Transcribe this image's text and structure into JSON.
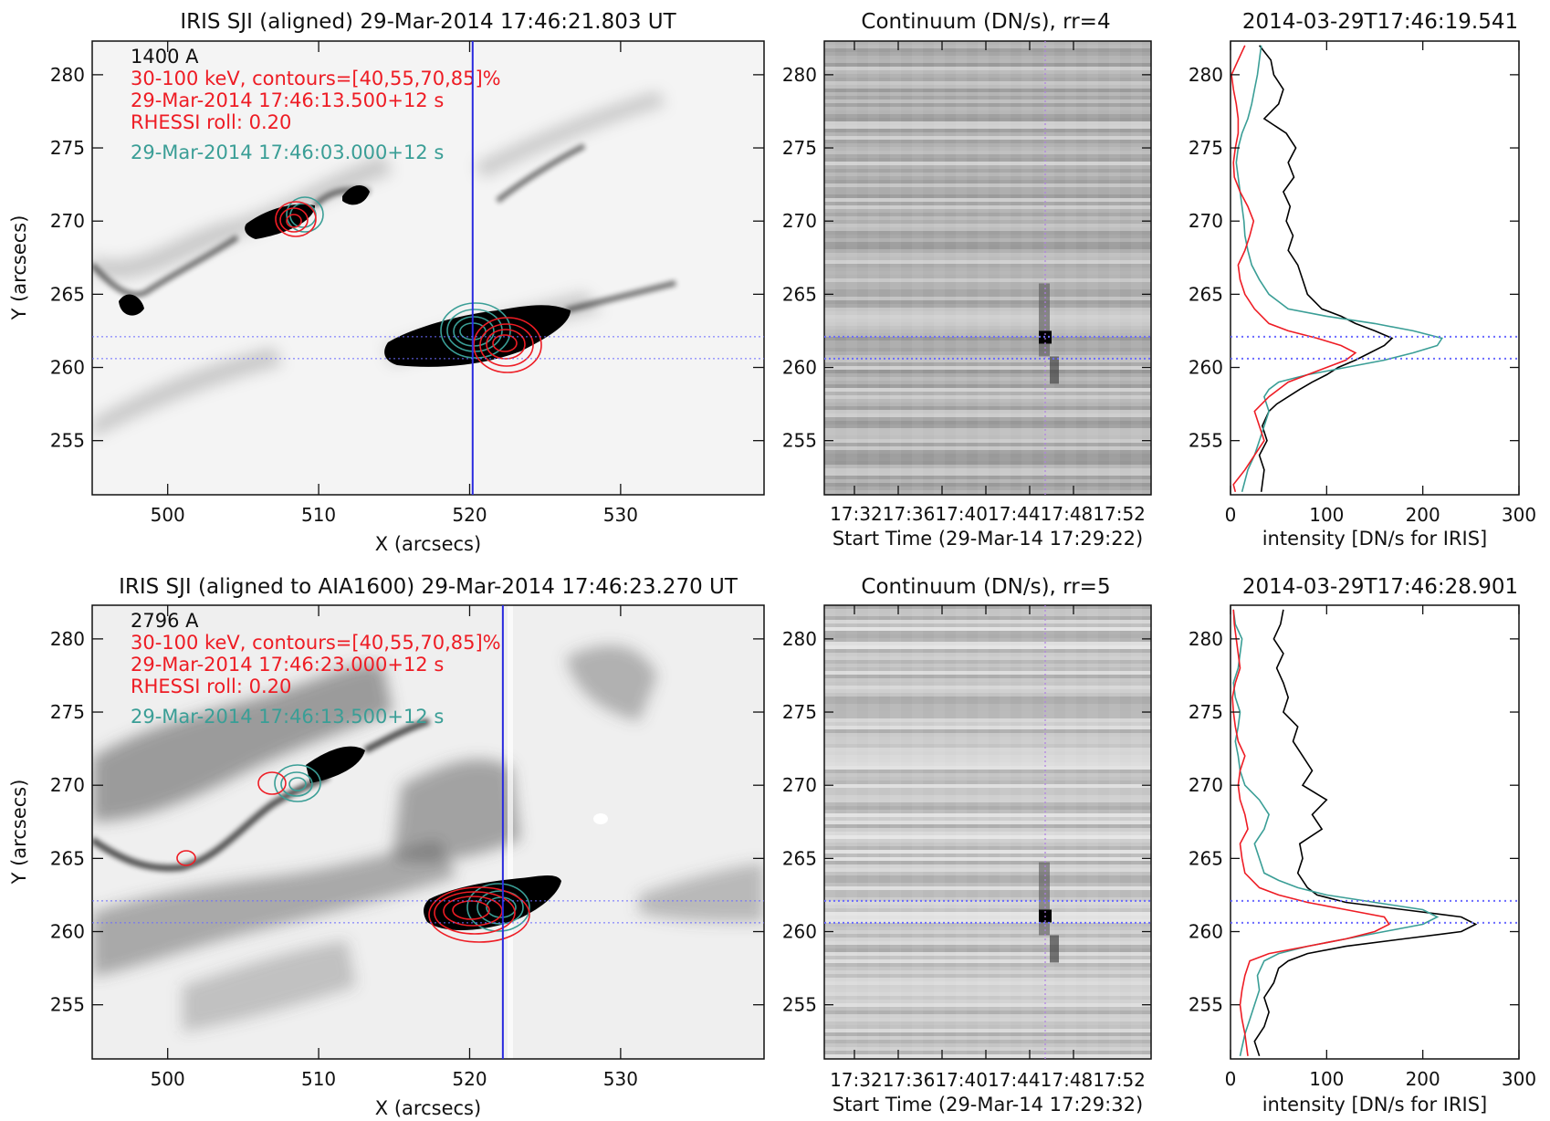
{
  "colors": {
    "rhessi": "#ee1c24",
    "teal": "#3a9e96",
    "slit": "#2a2adf",
    "dotted_blue": "#6b6bff",
    "dotted_violet": "#b07be6",
    "profile_black": "#000000"
  },
  "panels": [
    {
      "image": {
        "title": "IRIS SJI (aligned) 29-Mar-2014 17:46:21.803 UT",
        "xlabel": "X (arcsecs)",
        "ylabel": "Y (arcsecs)",
        "xlim": [
          495,
          539.5
        ],
        "ylim": [
          251.3,
          282.3
        ],
        "xticks": [
          "500",
          "510",
          "520",
          "530"
        ],
        "yticks": [
          "255",
          "260",
          "265",
          "270",
          "275",
          "280"
        ],
        "annotations": [
          {
            "text": "1400 A",
            "color": "#111111"
          },
          {
            "text": "30-100 keV, contours=[40,55,70,85]%",
            "color": "#ee1c24"
          },
          {
            "text": "29-Mar-2014 17:46:13.500+12 s",
            "color": "#ee1c24"
          },
          {
            "text": "RHESSI roll:  0.20",
            "color": "#ee1c24"
          },
          {
            "text": "29-Mar-2014 17:46:03.000+12 s",
            "color": "#3a9e96"
          }
        ],
        "slit_x": 520.2,
        "hlines": [
          262.1,
          260.6
        ]
      },
      "spectrum": {
        "title": "Continuum (DN/s), rr=4",
        "xtick_label": "17:3217:3617:4017:4417:4817:52",
        "xlabel": "Start Time (29-Mar-14 17:29:22)",
        "yticks": [
          "255",
          "260",
          "265",
          "270",
          "275",
          "280"
        ],
        "ylim": [
          251.3,
          282.3
        ]
      },
      "profile": {
        "title": "2014-03-29T17:46:19.541",
        "xlabel": "intensity [DN/s for IRIS]",
        "xticks": [
          "0",
          "100",
          "200",
          "300"
        ],
        "yticks": [
          "255",
          "260",
          "265",
          "270",
          "275",
          "280"
        ],
        "xlim": [
          0,
          300
        ],
        "ylim": [
          251.3,
          282.3
        ]
      }
    },
    {
      "image": {
        "title": "IRIS SJI (aligned to AIA1600) 29-Mar-2014 17:46:23.270 UT",
        "xlabel": "X (arcsecs)",
        "ylabel": "Y (arcsecs)",
        "xlim": [
          495,
          539.5
        ],
        "ylim": [
          251.3,
          282.3
        ],
        "xticks": [
          "500",
          "510",
          "520",
          "530"
        ],
        "yticks": [
          "255",
          "260",
          "265",
          "270",
          "275",
          "280"
        ],
        "annotations": [
          {
            "text": "2796 A",
            "color": "#111111"
          },
          {
            "text": "30-100 keV, contours=[40,55,70,85]%",
            "color": "#ee1c24"
          },
          {
            "text": "29-Mar-2014 17:46:23.000+12 s",
            "color": "#ee1c24"
          },
          {
            "text": "RHESSI roll:  0.20",
            "color": "#ee1c24"
          },
          {
            "text": "29-Mar-2014 17:46:13.500+12 s",
            "color": "#3a9e96"
          }
        ],
        "slit_x": 522.2,
        "hlines": [
          262.1,
          260.6
        ]
      },
      "spectrum": {
        "title": "Continuum (DN/s), rr=5",
        "xtick_label": "17:3217:3617:4017:4417:4817:52",
        "xlabel": "Start Time (29-Mar-14 17:29:32)",
        "yticks": [
          "255",
          "260",
          "265",
          "270",
          "275",
          "280"
        ],
        "ylim": [
          251.3,
          282.3
        ]
      },
      "profile": {
        "title": "2014-03-29T17:46:28.901",
        "xlabel": "intensity [DN/s for IRIS]",
        "xticks": [
          "0",
          "100",
          "200",
          "300"
        ],
        "yticks": [
          "255",
          "260",
          "265",
          "270",
          "275",
          "280"
        ],
        "xlim": [
          0,
          300
        ],
        "ylim": [
          251.3,
          282.3
        ]
      }
    }
  ],
  "chart_data": [
    {
      "type": "line",
      "title": "2014-03-29T17:46:19.541",
      "xlabel": "intensity [DN/s for IRIS]",
      "xlim": [
        0,
        300
      ],
      "ylim": [
        251.3,
        282.3
      ],
      "series": [
        {
          "color": "#000000",
          "y": [
            251.5,
            253,
            254,
            255,
            256,
            257,
            257.5,
            258,
            258.5,
            259,
            259.5,
            260,
            260.5,
            261,
            261.5,
            262,
            262.5,
            263,
            263.5,
            264,
            265,
            266,
            267,
            268,
            269,
            270,
            271,
            272,
            273,
            274,
            275,
            276,
            277,
            278,
            279,
            280,
            281,
            282
          ],
          "x": [
            32,
            35,
            30,
            38,
            33,
            40,
            48,
            60,
            72,
            85,
            100,
            112,
            130,
            145,
            160,
            168,
            150,
            130,
            115,
            95,
            80,
            75,
            70,
            60,
            65,
            58,
            62,
            55,
            66,
            60,
            68,
            58,
            35,
            50,
            55,
            45,
            42,
            30
          ]
        },
        {
          "color": "#3a9e96",
          "y": [
            251.5,
            253,
            254,
            255,
            256,
            257,
            258,
            258.5,
            259,
            259.5,
            260,
            260.5,
            261,
            261.5,
            262,
            262.5,
            263,
            263.5,
            264,
            265,
            266,
            267,
            268,
            269,
            270,
            271,
            272,
            273,
            274,
            275,
            276,
            277,
            278,
            279,
            280,
            281,
            282
          ],
          "x": [
            12,
            18,
            25,
            30,
            35,
            40,
            35,
            40,
            50,
            80,
            120,
            160,
            190,
            215,
            220,
            190,
            150,
            100,
            60,
            40,
            30,
            22,
            18,
            15,
            14,
            12,
            10,
            8,
            6,
            8,
            12,
            18,
            22,
            25,
            28,
            30,
            32
          ]
        },
        {
          "color": "#ee1c24",
          "y": [
            251.5,
            252,
            253,
            254,
            255,
            256,
            257,
            258,
            259,
            259.5,
            260,
            260.5,
            261,
            261.5,
            262,
            262.5,
            263,
            264,
            265,
            266,
            267,
            268,
            269,
            270,
            271,
            272,
            273,
            274,
            275,
            276,
            277,
            278,
            279,
            280,
            281,
            282
          ],
          "x": [
            5,
            3,
            15,
            25,
            35,
            30,
            25,
            40,
            60,
            80,
            100,
            120,
            130,
            115,
            90,
            60,
            40,
            25,
            15,
            10,
            8,
            15,
            20,
            24,
            18,
            10,
            4,
            3,
            5,
            8,
            8,
            6,
            3,
            1,
            8,
            15
          ]
        }
      ]
    },
    {
      "type": "line",
      "title": "2014-03-29T17:46:28.901",
      "xlabel": "intensity [DN/s for IRIS]",
      "xlim": [
        0,
        300
      ],
      "ylim": [
        251.3,
        282.3
      ],
      "series": [
        {
          "color": "#000000",
          "y": [
            251.5,
            252.5,
            253.5,
            254.5,
            255.5,
            256.5,
            257.5,
            258,
            258.5,
            259,
            259.5,
            260,
            260.5,
            261,
            261.5,
            262,
            262.5,
            263,
            264,
            265,
            266,
            267,
            268,
            269,
            270,
            271,
            272,
            273,
            274,
            275,
            276,
            277,
            278,
            279,
            280,
            281,
            282
          ],
          "x": [
            30,
            25,
            35,
            40,
            35,
            45,
            50,
            60,
            80,
            120,
            180,
            240,
            255,
            240,
            180,
            120,
            90,
            80,
            70,
            75,
            72,
            95,
            85,
            100,
            75,
            85,
            75,
            65,
            70,
            55,
            60,
            55,
            48,
            55,
            45,
            52,
            55
          ]
        },
        {
          "color": "#3a9e96",
          "y": [
            251.5,
            253,
            254,
            255,
            256,
            257,
            258,
            258.5,
            259,
            259.5,
            260,
            260.5,
            261,
            261.5,
            262,
            262.5,
            263,
            263.5,
            264,
            265,
            266,
            267,
            268,
            269,
            270,
            271,
            272,
            273,
            274,
            275,
            276,
            277,
            278,
            279,
            280,
            281,
            282
          ],
          "x": [
            10,
            15,
            20,
            25,
            30,
            28,
            35,
            50,
            80,
            120,
            160,
            200,
            215,
            200,
            150,
            100,
            70,
            50,
            35,
            30,
            25,
            35,
            40,
            30,
            15,
            10,
            8,
            5,
            8,
            10,
            5,
            3,
            8,
            10,
            12,
            5,
            3
          ]
        },
        {
          "color": "#ee1c24",
          "y": [
            251.5,
            253,
            254,
            255,
            256,
            257,
            258,
            258.5,
            259,
            259.5,
            260,
            260.5,
            261,
            261.5,
            262,
            262.5,
            263,
            264,
            265,
            266,
            267,
            268,
            269,
            270,
            271,
            272,
            273,
            274,
            275,
            276,
            277,
            278,
            279,
            280,
            281,
            282
          ],
          "x": [
            18,
            15,
            12,
            10,
            12,
            15,
            20,
            40,
            80,
            120,
            150,
            165,
            160,
            120,
            80,
            50,
            30,
            15,
            12,
            10,
            18,
            15,
            10,
            8,
            10,
            15,
            8,
            5,
            3,
            2,
            5,
            10,
            8,
            6,
            4,
            3
          ]
        }
      ]
    }
  ]
}
